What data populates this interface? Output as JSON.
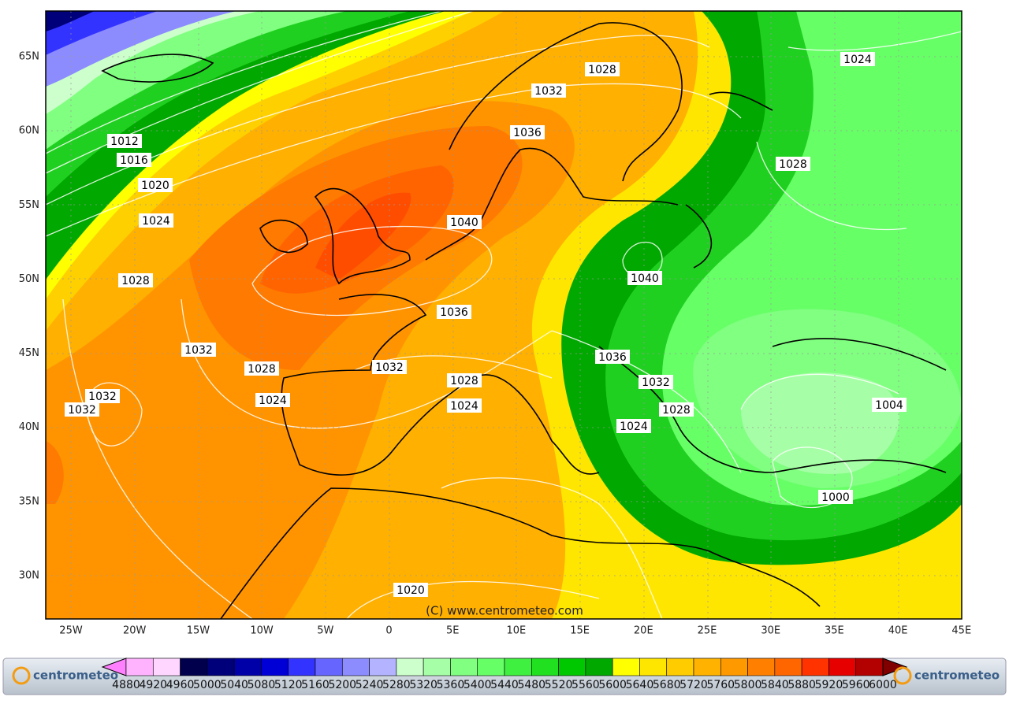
{
  "map": {
    "copyright": "(C)  www.centrometeo.com",
    "logo": "centrometeo",
    "lat_labels": [
      "65N",
      "60N",
      "55N",
      "50N",
      "45N",
      "40N",
      "35N",
      "30N"
    ],
    "lon_labels": [
      "25W",
      "20W",
      "15W",
      "10W",
      "5W",
      "0",
      "5E",
      "10E",
      "15E",
      "20E",
      "25E",
      "30E",
      "35E",
      "40E",
      "45E"
    ],
    "isobar_labels": [
      1012,
      1016,
      1020,
      1024,
      1028,
      1032,
      1028,
      1024,
      1032,
      1032,
      1028,
      1032,
      1036,
      1040,
      1036,
      1032,
      1028,
      1024,
      1020,
      1040,
      1036,
      1032,
      1028,
      1024,
      1024,
      1028,
      1004,
      1000
    ],
    "colorbar": {
      "labels": [
        4880,
        4920,
        4960,
        5000,
        5040,
        5080,
        5120,
        5160,
        5200,
        5240,
        5280,
        5320,
        5360,
        5400,
        5440,
        5480,
        5520,
        5560,
        5600,
        5640,
        5680,
        5720,
        5760,
        5800,
        5840,
        5880,
        5920,
        5960,
        6000
      ]
    }
  }
}
